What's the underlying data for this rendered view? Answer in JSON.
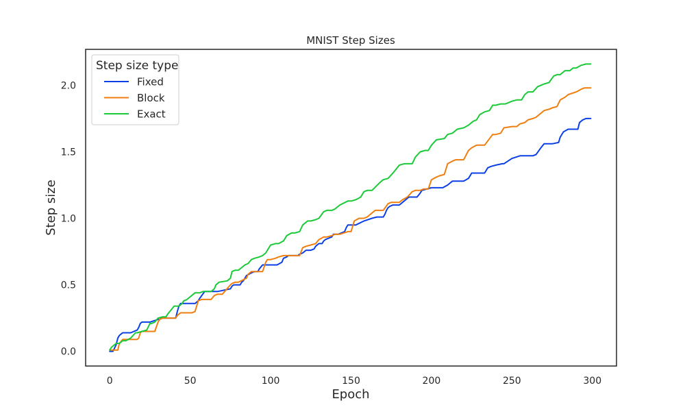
{
  "chart_data": {
    "type": "line",
    "title": "MNIST Step Sizes",
    "xlabel": "Epoch",
    "ylabel": "Step size",
    "xlim": [
      -15,
      315
    ],
    "ylim": [
      -0.11,
      2.27
    ],
    "xticks": [
      0,
      50,
      100,
      150,
      200,
      250,
      300
    ],
    "yticks": [
      0.0,
      0.5,
      1.0,
      1.5,
      2.0
    ],
    "grid": false,
    "legend": {
      "title": "Step size type",
      "placement": "top-left"
    },
    "series": [
      {
        "name": "Fixed",
        "color": "#0b3fe6",
        "x": [
          0,
          2,
          4,
          5,
          6,
          8,
          13,
          17,
          18,
          19,
          20,
          25,
          30,
          31,
          32,
          33,
          41,
          42,
          43,
          44,
          53,
          55,
          56,
          59,
          64,
          65,
          66,
          67,
          75,
          76,
          77,
          81,
          82,
          83,
          84,
          85,
          88,
          90,
          92,
          93,
          95,
          100,
          104,
          107,
          108,
          110,
          111,
          112,
          113,
          117,
          118,
          120,
          122,
          125,
          127,
          128,
          130,
          132,
          133,
          134,
          136,
          138,
          139,
          141,
          142,
          146,
          147,
          148,
          149,
          153,
          158,
          163,
          166,
          170,
          171,
          172,
          173,
          174,
          176,
          180,
          182,
          185,
          186,
          187,
          191,
          193,
          194,
          200,
          203,
          207,
          210,
          213,
          220,
          223,
          225,
          230,
          233,
          235,
          237,
          240,
          244,
          245,
          250,
          255,
          258,
          260,
          263,
          265,
          268,
          270,
          275,
          279,
          280,
          282,
          285,
          288,
          291,
          292,
          294,
          296,
          299
        ],
        "values": [
          0.0,
          0.0,
          0.05,
          0.1,
          0.12,
          0.14,
          0.14,
          0.16,
          0.18,
          0.21,
          0.22,
          0.22,
          0.24,
          0.24,
          0.25,
          0.25,
          0.25,
          0.3,
          0.34,
          0.36,
          0.36,
          0.38,
          0.4,
          0.45,
          0.45,
          0.45,
          0.45,
          0.45,
          0.47,
          0.49,
          0.5,
          0.5,
          0.52,
          0.53,
          0.55,
          0.57,
          0.59,
          0.6,
          0.6,
          0.62,
          0.65,
          0.65,
          0.65,
          0.67,
          0.7,
          0.71,
          0.72,
          0.72,
          0.72,
          0.72,
          0.73,
          0.74,
          0.76,
          0.76,
          0.77,
          0.79,
          0.81,
          0.81,
          0.83,
          0.84,
          0.85,
          0.86,
          0.88,
          0.88,
          0.88,
          0.9,
          0.93,
          0.95,
          0.95,
          0.95,
          0.98,
          1.0,
          1.01,
          1.01,
          1.03,
          1.06,
          1.08,
          1.09,
          1.1,
          1.1,
          1.12,
          1.15,
          1.16,
          1.16,
          1.16,
          1.19,
          1.21,
          1.23,
          1.23,
          1.23,
          1.25,
          1.28,
          1.28,
          1.3,
          1.34,
          1.34,
          1.34,
          1.38,
          1.39,
          1.4,
          1.41,
          1.41,
          1.45,
          1.47,
          1.47,
          1.47,
          1.47,
          1.48,
          1.53,
          1.56,
          1.56,
          1.57,
          1.61,
          1.65,
          1.67,
          1.67,
          1.67,
          1.72,
          1.74,
          1.75,
          1.75
        ]
      },
      {
        "name": "Block",
        "color": "#f07e0e",
        "x": [
          0,
          2,
          4,
          5,
          6,
          8,
          12,
          17,
          18,
          19,
          20,
          25,
          28,
          30,
          31,
          33,
          35,
          41,
          42,
          43,
          44,
          51,
          53,
          55,
          57,
          63,
          65,
          67,
          70,
          75,
          76,
          78,
          80,
          85,
          86,
          88,
          90,
          95,
          97,
          98,
          100,
          103,
          105,
          108,
          110,
          113,
          118,
          120,
          122,
          125,
          128,
          130,
          133,
          135,
          138,
          140,
          143,
          148,
          150,
          152,
          155,
          158,
          160,
          163,
          165,
          168,
          170,
          173,
          175,
          180,
          182,
          185,
          188,
          190,
          193,
          195,
          198,
          200,
          203,
          205,
          208,
          210,
          213,
          215,
          218,
          220,
          223,
          225,
          228,
          230,
          233,
          238,
          240,
          243,
          245,
          250,
          253,
          255,
          258,
          260,
          263,
          265,
          270,
          273,
          275,
          278,
          280,
          283,
          285,
          290,
          293,
          295,
          299
        ],
        "values": [
          0.01,
          0.01,
          0.01,
          0.01,
          0.06,
          0.09,
          0.09,
          0.09,
          0.1,
          0.14,
          0.15,
          0.15,
          0.15,
          0.22,
          0.24,
          0.25,
          0.25,
          0.25,
          0.27,
          0.28,
          0.29,
          0.29,
          0.3,
          0.38,
          0.39,
          0.39,
          0.42,
          0.43,
          0.43,
          0.5,
          0.51,
          0.52,
          0.52,
          0.55,
          0.58,
          0.6,
          0.6,
          0.6,
          0.67,
          0.69,
          0.69,
          0.7,
          0.71,
          0.72,
          0.72,
          0.72,
          0.72,
          0.78,
          0.79,
          0.8,
          0.81,
          0.84,
          0.86,
          0.86,
          0.87,
          0.88,
          0.88,
          0.9,
          0.9,
          0.98,
          1.0,
          1.0,
          1.01,
          1.04,
          1.06,
          1.06,
          1.06,
          1.11,
          1.12,
          1.12,
          1.14,
          1.16,
          1.2,
          1.21,
          1.21,
          1.22,
          1.22,
          1.29,
          1.31,
          1.32,
          1.33,
          1.41,
          1.43,
          1.44,
          1.44,
          1.44,
          1.51,
          1.53,
          1.55,
          1.55,
          1.55,
          1.63,
          1.63,
          1.64,
          1.68,
          1.69,
          1.69,
          1.71,
          1.72,
          1.74,
          1.75,
          1.76,
          1.81,
          1.82,
          1.83,
          1.84,
          1.89,
          1.91,
          1.93,
          1.95,
          1.97,
          1.98,
          1.98
        ]
      },
      {
        "name": "Exact",
        "color": "#1ac938",
        "x": [
          0,
          1,
          2,
          3,
          4,
          5,
          6,
          8,
          10,
          13,
          16,
          17,
          20,
          23,
          25,
          26,
          28,
          30,
          33,
          35,
          36,
          38,
          40,
          43,
          45,
          46,
          48,
          53,
          55,
          56,
          58,
          63,
          65,
          66,
          68,
          73,
          75,
          76,
          78,
          80,
          82,
          84,
          86,
          88,
          90,
          93,
          95,
          97,
          100,
          103,
          105,
          108,
          110,
          113,
          115,
          118,
          120,
          123,
          125,
          128,
          130,
          133,
          135,
          138,
          140,
          143,
          148,
          150,
          153,
          156,
          158,
          160,
          163,
          168,
          170,
          173,
          176,
          178,
          180,
          183,
          188,
          190,
          193,
          196,
          198,
          200,
          203,
          208,
          210,
          213,
          216,
          220,
          223,
          226,
          228,
          230,
          233,
          236,
          238,
          240,
          243,
          246,
          250,
          253,
          256,
          258,
          260,
          263,
          266,
          268,
          270,
          273,
          276,
          278,
          280,
          283,
          286,
          288,
          290,
          293,
          296,
          299
        ],
        "values": [
          0.01,
          0.03,
          0.04,
          0.05,
          0.06,
          0.06,
          0.06,
          0.08,
          0.08,
          0.1,
          0.14,
          0.14,
          0.15,
          0.16,
          0.21,
          0.21,
          0.22,
          0.25,
          0.26,
          0.26,
          0.28,
          0.31,
          0.34,
          0.34,
          0.36,
          0.38,
          0.39,
          0.44,
          0.44,
          0.44,
          0.45,
          0.45,
          0.47,
          0.5,
          0.52,
          0.53,
          0.55,
          0.6,
          0.61,
          0.61,
          0.63,
          0.65,
          0.66,
          0.69,
          0.7,
          0.71,
          0.72,
          0.74,
          0.8,
          0.81,
          0.81,
          0.83,
          0.87,
          0.89,
          0.89,
          0.9,
          0.95,
          0.98,
          0.98,
          0.99,
          1.0,
          1.05,
          1.06,
          1.06,
          1.07,
          1.1,
          1.13,
          1.13,
          1.14,
          1.16,
          1.2,
          1.21,
          1.21,
          1.27,
          1.29,
          1.3,
          1.34,
          1.37,
          1.4,
          1.41,
          1.41,
          1.46,
          1.5,
          1.51,
          1.51,
          1.55,
          1.59,
          1.6,
          1.63,
          1.64,
          1.67,
          1.68,
          1.7,
          1.73,
          1.74,
          1.78,
          1.8,
          1.81,
          1.85,
          1.85,
          1.86,
          1.86,
          1.88,
          1.89,
          1.89,
          1.93,
          1.95,
          1.95,
          1.99,
          2.0,
          2.01,
          2.02,
          2.07,
          2.08,
          2.08,
          2.11,
          2.11,
          2.13,
          2.13,
          2.15,
          2.16,
          2.16
        ]
      }
    ]
  }
}
